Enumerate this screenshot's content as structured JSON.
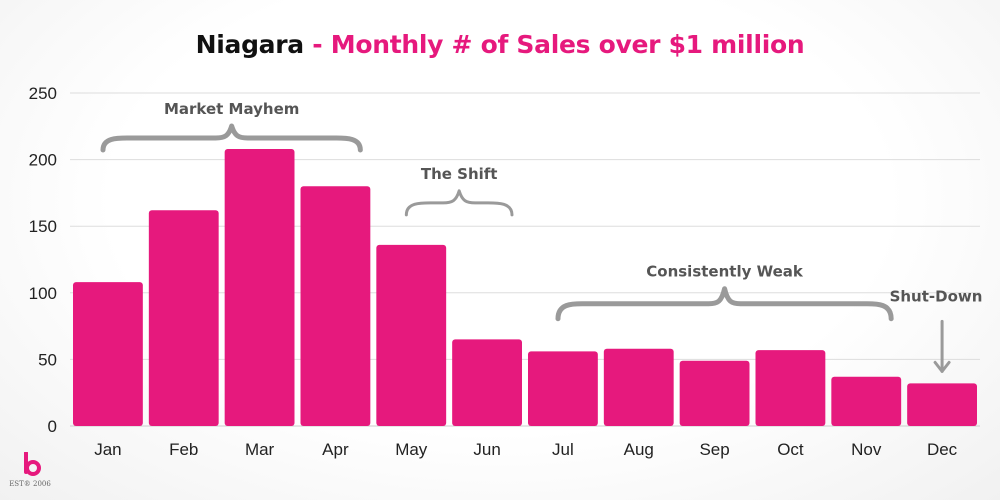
{
  "title": {
    "main": "Niagara",
    "separator": " - ",
    "subtitle": "Monthly # of Sales over $1 million"
  },
  "colors": {
    "bar": "#e6197d",
    "annotation": "#555555",
    "brace": "#9a9a9a",
    "grid": "#dddddd"
  },
  "chart_data": {
    "type": "bar",
    "categories": [
      "Jan",
      "Feb",
      "Mar",
      "Apr",
      "May",
      "Jun",
      "Jul",
      "Aug",
      "Sep",
      "Oct",
      "Nov",
      "Dec"
    ],
    "values": [
      108,
      162,
      208,
      180,
      136,
      65,
      56,
      58,
      49,
      57,
      37,
      32
    ],
    "ylim": [
      0,
      250
    ],
    "yticks": [
      0,
      50,
      100,
      150,
      200,
      250
    ],
    "grid": true,
    "legend": false,
    "annotations": [
      {
        "text": "Market Mayhem",
        "from": "Jan",
        "to": "Apr",
        "type": "brace"
      },
      {
        "text": "The Shift",
        "from": "May",
        "to": "Jun",
        "type": "brace"
      },
      {
        "text": "Consistently Weak",
        "from": "Jul",
        "to": "Nov",
        "type": "brace"
      },
      {
        "text": "Shut-Down",
        "at": "Dec",
        "type": "arrow"
      }
    ]
  },
  "logo": {
    "icon": "b-logo-icon",
    "text": "EST® 2006"
  }
}
